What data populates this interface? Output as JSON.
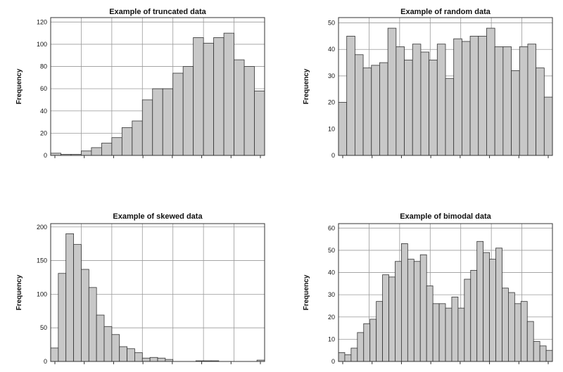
{
  "chart_data": [
    {
      "type": "bar",
      "title": "Example of truncated data",
      "ylabel": "Frequency",
      "xlabel": "",
      "ylim": [
        0,
        124
      ],
      "yticks": [
        0,
        20,
        40,
        60,
        80,
        100,
        120
      ],
      "grid": true,
      "values": [
        2,
        1,
        1,
        4,
        7,
        11,
        16,
        25,
        31,
        50,
        60,
        60,
        74,
        80,
        106,
        101,
        106,
        110,
        86,
        80,
        58
      ]
    },
    {
      "type": "bar",
      "title": "Example of random data",
      "ylabel": "Frequency",
      "xlabel": "",
      "ylim": [
        0,
        52
      ],
      "yticks": [
        0,
        10,
        20,
        30,
        40,
        50
      ],
      "grid": true,
      "values": [
        20,
        45,
        38,
        33,
        34,
        35,
        48,
        41,
        36,
        42,
        39,
        36,
        42,
        29,
        44,
        43,
        45,
        45,
        48,
        41,
        41,
        32,
        41,
        42,
        33,
        22
      ]
    },
    {
      "type": "bar",
      "title": "Example of skewed data",
      "ylabel": "Frequency",
      "xlabel": "",
      "ylim": [
        0,
        205
      ],
      "yticks": [
        0,
        50,
        100,
        150,
        200
      ],
      "grid": true,
      "values": [
        20,
        131,
        190,
        174,
        137,
        110,
        69,
        52,
        40,
        22,
        19,
        13,
        5,
        6,
        5,
        3,
        0,
        0,
        0,
        1,
        1,
        1,
        0,
        0,
        0,
        0,
        0,
        2
      ]
    },
    {
      "type": "bar",
      "title": "Example of bimodal data",
      "ylabel": "Frequency",
      "xlabel": "",
      "ylim": [
        0,
        62
      ],
      "yticks": [
        0,
        10,
        20,
        30,
        40,
        50,
        60
      ],
      "grid": true,
      "values": [
        4,
        3,
        6,
        13,
        17,
        19,
        27,
        39,
        38,
        45,
        53,
        46,
        45,
        48,
        34,
        26,
        26,
        24,
        29,
        24,
        37,
        41,
        54,
        49,
        46,
        51,
        33,
        31,
        26,
        27,
        18,
        9,
        7,
        5
      ]
    }
  ]
}
